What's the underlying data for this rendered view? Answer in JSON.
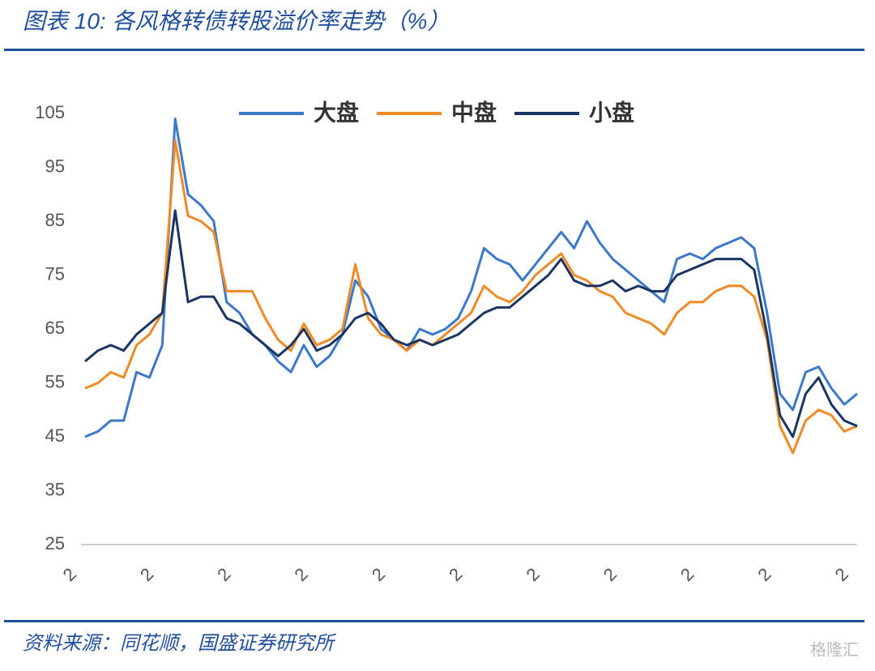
{
  "chart_data": {
    "type": "line",
    "title": "图表 10:  各风格转债转股溢价率走势（%）",
    "source": "资料来源：同花顺，国盛证券研究所",
    "watermark": "格隆汇",
    "categories": [
      "2",
      null,
      null,
      null,
      null,
      null,
      "2",
      null,
      null,
      null,
      null,
      null,
      "2",
      null,
      null,
      null,
      null,
      null,
      "2",
      null,
      null,
      null,
      null,
      null,
      "2",
      null,
      null,
      null,
      null,
      null,
      "2",
      null,
      null,
      null,
      null,
      null,
      "2",
      null,
      null,
      null,
      null,
      null,
      "2",
      null,
      null,
      null,
      null,
      null,
      "2",
      null,
      null,
      null,
      null,
      null,
      "2",
      null,
      null,
      null,
      null,
      null,
      "2"
    ],
    "ylim": [
      25,
      105
    ],
    "yticks": [
      25,
      35,
      45,
      55,
      65,
      75,
      85,
      95,
      105
    ],
    "legend": "top",
    "grid": false,
    "series": [
      {
        "name": "大盘",
        "color": "#3b78c9",
        "values": [
          45,
          46,
          48,
          48,
          57,
          56,
          62,
          104,
          90,
          88,
          85,
          70,
          68,
          64,
          62,
          59,
          57,
          62,
          58,
          60,
          64,
          74,
          71,
          65,
          63,
          61,
          65,
          64,
          65,
          67,
          72,
          80,
          78,
          77,
          74,
          77,
          80,
          83,
          80,
          85,
          81,
          78,
          76,
          74,
          72,
          70,
          78,
          79,
          78,
          80,
          81,
          82,
          80,
          68,
          53,
          50,
          57,
          58,
          54,
          51,
          53
        ]
      },
      {
        "name": "中盘",
        "color": "#f08a24",
        "values": [
          54,
          55,
          57,
          56,
          62,
          64,
          68,
          100,
          86,
          85,
          83,
          72,
          72,
          72,
          67,
          63,
          61,
          66,
          62,
          63,
          65,
          77,
          67,
          64,
          63,
          61,
          63,
          62,
          64,
          66,
          68,
          73,
          71,
          70,
          72,
          75,
          77,
          79,
          75,
          74,
          72,
          71,
          68,
          67,
          66,
          64,
          68,
          70,
          70,
          72,
          73,
          73,
          71,
          63,
          47,
          42,
          48,
          50,
          49,
          46,
          47
        ]
      },
      {
        "name": "小盘",
        "color": "#1b3562",
        "values": [
          59,
          61,
          62,
          61,
          64,
          66,
          68,
          87,
          70,
          71,
          71,
          67,
          66,
          64,
          62,
          60,
          62,
          65,
          61,
          62,
          64,
          67,
          68,
          66,
          63,
          62,
          63,
          62,
          63,
          64,
          66,
          68,
          69,
          69,
          71,
          73,
          75,
          78,
          74,
          73,
          73,
          74,
          72,
          73,
          72,
          72,
          75,
          76,
          77,
          78,
          78,
          78,
          76,
          64,
          49,
          45,
          53,
          56,
          51,
          48,
          47
        ]
      }
    ]
  }
}
